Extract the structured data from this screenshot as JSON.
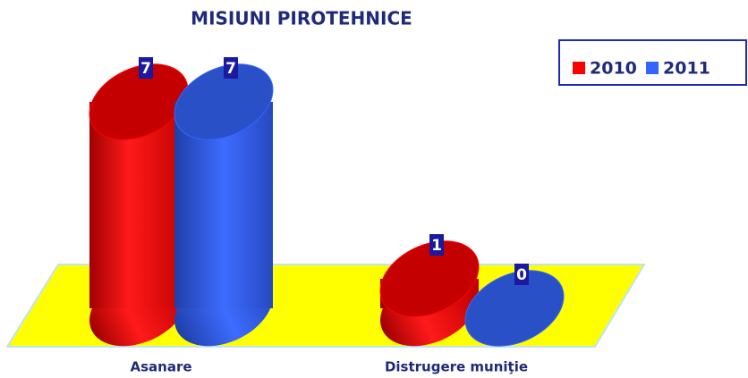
{
  "chart_data": {
    "type": "bar3d",
    "title": "MISIUNI PIROTEHNICE",
    "categories": [
      "Asanare",
      "Distrugere muniţie"
    ],
    "series": [
      {
        "name": "2010",
        "color": "#ff0000",
        "values": [
          7,
          1
        ]
      },
      {
        "name": "2011",
        "color": "#3366ff",
        "values": [
          7,
          0
        ]
      }
    ],
    "legend": "top-right"
  }
}
